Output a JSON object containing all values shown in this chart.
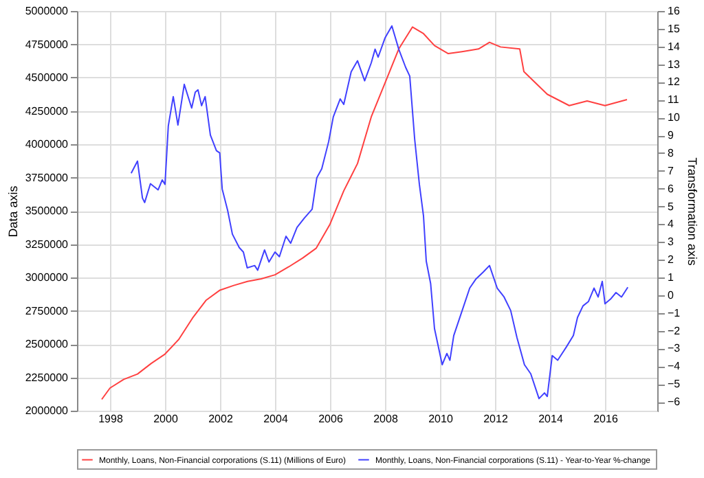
{
  "chart_data": {
    "type": "line",
    "xlabel": null,
    "ylabel": "Data axis",
    "y2label": "Transformation axis",
    "xlim": [
      1996.8,
      2017.9
    ],
    "xticks": [
      1998,
      2000,
      2002,
      2004,
      2006,
      2008,
      2010,
      2012,
      2014,
      2016
    ],
    "ylim": [
      2000000,
      5000000
    ],
    "yticks": [
      2000000,
      2250000,
      2500000,
      2750000,
      3000000,
      3250000,
      3500000,
      3750000,
      4000000,
      4250000,
      4500000,
      4750000,
      5000000
    ],
    "y2lim": [
      -6.5,
      16
    ],
    "y2ticks": [
      -6,
      -5,
      -4,
      -3,
      -2,
      -1,
      0,
      1,
      2,
      3,
      4,
      5,
      6,
      7,
      8,
      9,
      10,
      11,
      12,
      13,
      14,
      15,
      16
    ],
    "grid": true,
    "legend": "bottom",
    "marker": "none",
    "line_style": "solid",
    "series": [
      {
        "name": "Monthly, Loans, Non-Financial corporations (S.11) (Millions of Euro)",
        "color": "#ff4040",
        "axis": "y",
        "x": [
          1997.7,
          1998.0,
          1998.5,
          1999.0,
          1999.5,
          2000.0,
          2000.5,
          2001.0,
          2001.5,
          2002.0,
          2002.5,
          2003.0,
          2003.5,
          2004.0,
          2004.5,
          2005.0,
          2005.5,
          2006.0,
          2006.5,
          2007.0,
          2007.5,
          2008.0,
          2008.5,
          2009.0,
          2009.4,
          2009.8,
          2010.3,
          2010.8,
          2011.4,
          2011.8,
          2012.2,
          2012.9,
          2013.05,
          2013.9,
          2014.7,
          2015.35,
          2016.0,
          2016.8
        ],
        "values": [
          2085000,
          2170000,
          2235000,
          2275000,
          2355000,
          2425000,
          2535000,
          2695000,
          2830000,
          2905000,
          2940000,
          2970000,
          2990000,
          3020000,
          3080000,
          3145000,
          3220000,
          3400000,
          3650000,
          3855000,
          4205000,
          4460000,
          4715000,
          4880000,
          4830000,
          4740000,
          4680000,
          4695000,
          4715000,
          4765000,
          4730000,
          4715000,
          4545000,
          4375000,
          4290000,
          4325000,
          4290000,
          4335000
        ]
      },
      {
        "name": "Monthly, Loans, Non-Financial corporations (S.11) - Year-to-Year %-change",
        "color": "#4040ff",
        "axis": "y2",
        "x": [
          1998.77,
          1999.0,
          1999.18,
          1999.26,
          1999.47,
          1999.75,
          1999.9,
          2000.0,
          2000.12,
          2000.3,
          2000.47,
          2000.7,
          2000.97,
          2001.1,
          2001.2,
          2001.33,
          2001.46,
          2001.65,
          2001.87,
          2001.99,
          2002.08,
          2002.28,
          2002.45,
          2002.7,
          2002.85,
          2002.99,
          2003.26,
          2003.37,
          2003.62,
          2003.78,
          2004.0,
          2004.16,
          2004.4,
          2004.57,
          2004.8,
          2005.06,
          2005.35,
          2005.52,
          2005.7,
          2005.95,
          2006.12,
          2006.37,
          2006.5,
          2006.77,
          2007.0,
          2007.26,
          2007.5,
          2007.64,
          2007.75,
          2008.0,
          2008.25,
          2008.5,
          2008.75,
          2008.9,
          2009.08,
          2009.25,
          2009.4,
          2009.5,
          2009.66,
          2009.8,
          2010.08,
          2010.25,
          2010.36,
          2010.5,
          2010.75,
          2011.08,
          2011.3,
          2011.57,
          2011.8,
          2012.08,
          2012.33,
          2012.57,
          2012.8,
          2013.07,
          2013.3,
          2013.6,
          2013.8,
          2013.9,
          2014.08,
          2014.28,
          2014.6,
          2014.85,
          2015.0,
          2015.2,
          2015.4,
          2015.6,
          2015.75,
          2015.9,
          2016.0,
          2016.2,
          2016.4,
          2016.6,
          2016.83
        ],
        "values": [
          6.87,
          7.55,
          5.47,
          5.22,
          6.28,
          5.93,
          6.49,
          6.24,
          9.53,
          11.18,
          9.58,
          11.87,
          10.54,
          11.43,
          11.56,
          10.67,
          11.18,
          9.02,
          8.14,
          8.01,
          5.98,
          4.76,
          3.44,
          2.68,
          2.43,
          1.54,
          1.67,
          1.41,
          2.55,
          1.87,
          2.43,
          2.17,
          3.32,
          2.93,
          3.82,
          4.33,
          4.84,
          6.61,
          7.12,
          8.64,
          10.04,
          11.05,
          10.74,
          12.58,
          13.2,
          12.07,
          13.08,
          13.85,
          13.4,
          14.48,
          15.16,
          13.85,
          12.83,
          12.33,
          8.77,
          6.24,
          4.46,
          1.92,
          0.65,
          -1.88,
          -3.91,
          -3.28,
          -3.66,
          -2.27,
          -1.12,
          0.4,
          0.9,
          1.3,
          1.67,
          0.4,
          -0.1,
          -0.86,
          -2.39,
          -3.91,
          -4.42,
          -5.82,
          -5.5,
          -5.7,
          -3.4,
          -3.66,
          -2.9,
          -2.27,
          -1.25,
          -0.6,
          -0.35,
          0.4,
          -0.1,
          0.78,
          -0.48,
          -0.22,
          0.15,
          -0.1,
          0.45
        ]
      }
    ]
  }
}
